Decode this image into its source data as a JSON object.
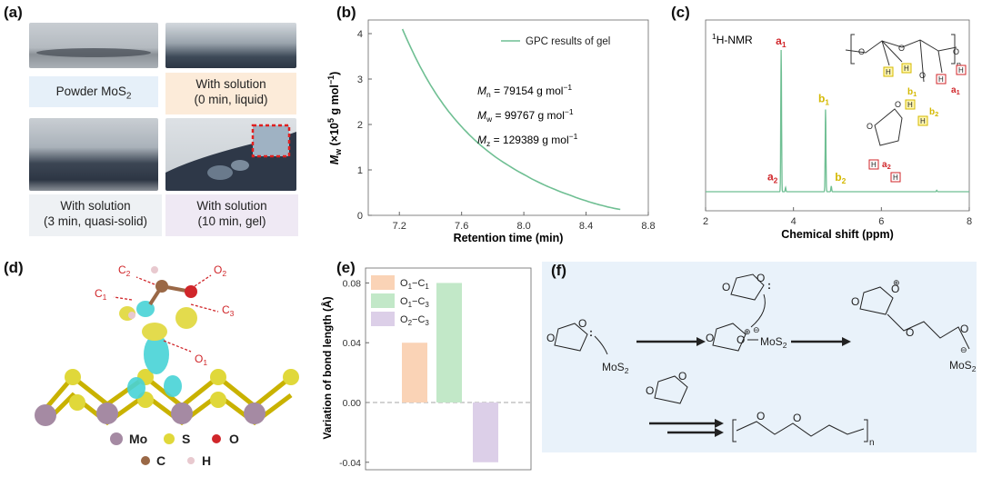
{
  "panel_labels": {
    "a": "(a)",
    "b": "(b)",
    "c": "(c)",
    "d": "(d)",
    "e": "(e)",
    "f": "(f)"
  },
  "panel_a": {
    "captions": [
      {
        "line1": "Powder MoS",
        "sub": "2",
        "line2": ""
      },
      {
        "line1": "With solution",
        "line2": "(0 min, liquid)"
      },
      {
        "line1": "With solution",
        "line2": "(3 min, quasi-solid)"
      },
      {
        "line1": "With solution",
        "line2": "(10 min, gel)"
      }
    ]
  },
  "panel_b": {
    "ylabel_main": "M",
    "ylabel_sub": "w",
    "ylabel_rest": " (×10",
    "ylabel_exp": "5",
    "ylabel_unit": " g mol",
    "ylabel_unit_exp": "−1",
    "ylabel_close": ")",
    "xlabel": "Retention time (min)",
    "legend": "GPC results of gel",
    "stats": [
      {
        "sym": "M",
        "sub": "n",
        "text": " = 79154 g mol",
        "exp": "−1"
      },
      {
        "sym": "M",
        "sub": "w",
        "text": " = 99767 g mol",
        "exp": "−1"
      },
      {
        "sym": "M",
        "sub": "z",
        "text": " = 129389 g mol",
        "exp": "−1"
      }
    ],
    "xticks": [
      "7.2",
      "7.6",
      "8.0",
      "8.4",
      "8.8"
    ],
    "yticks": [
      "0",
      "1",
      "2",
      "3",
      "4"
    ]
  },
  "panel_c": {
    "title_sup": "1",
    "title": "H-NMR",
    "xlabel": "Chemical shift (ppm)",
    "xticks": [
      "2",
      "4",
      "6",
      "8"
    ],
    "peak_labels": {
      "a1": "a",
      "a1_sub": "1",
      "a2": "a",
      "a2_sub": "2",
      "b1": "b",
      "b1_sub": "1",
      "b2": "b",
      "b2_sub": "2"
    },
    "struct_labels": {
      "H": "H",
      "n": "n",
      "b1": "b",
      "b1_sub": "1",
      "a1": "a",
      "a1_sub": "1",
      "b2": "b",
      "b2_sub": "2",
      "a2": "a",
      "a2_sub": "2"
    }
  },
  "panel_d": {
    "arrow_labels": [
      {
        "t": "C",
        "s": "2"
      },
      {
        "t": "O",
        "s": "2"
      },
      {
        "t": "C",
        "s": "1"
      },
      {
        "t": "C",
        "s": "3"
      },
      {
        "t": "O",
        "s": "1"
      }
    ],
    "legend": [
      {
        "label": "Mo",
        "color": "#a58aa3"
      },
      {
        "label": "S",
        "color": "#e0d83a"
      },
      {
        "label": "O",
        "color": "#d0262a"
      },
      {
        "label": "C",
        "color": "#9a6846"
      },
      {
        "label": "H",
        "color": "#e8c9cf"
      }
    ]
  },
  "panel_e": {
    "ylabel": "Variation of bond length (Å)",
    "yticks": [
      "-0.04",
      "0.00",
      "0.04",
      "0.08"
    ],
    "legend": [
      {
        "t": "O",
        "s1": "1",
        "mid": "−C",
        "s2": "1",
        "color": "#fad3b6"
      },
      {
        "t": "O",
        "s1": "1",
        "mid": "−C",
        "s2": "3",
        "color": "#c2e8c8"
      },
      {
        "t": "O",
        "s1": "2",
        "mid": "−C",
        "s2": "3",
        "color": "#dccfe8"
      }
    ]
  },
  "panel_f": {
    "labels": {
      "mos2": "MoS",
      "mos2_sub": "2",
      "n": "n",
      "plus": "⊕",
      "minus": "⊖",
      "colon": ":"
    }
  },
  "chart_data": [
    {
      "type": "line",
      "title": "",
      "xlabel": "Retention time (min)",
      "ylabel": "Mw (×10^5 g mol−1)",
      "xlim": [
        7.0,
        8.8
      ],
      "ylim": [
        0,
        4.3
      ],
      "series": [
        {
          "name": "GPC results of gel",
          "x": [
            7.22,
            7.3,
            7.4,
            7.5,
            7.6,
            7.7,
            7.8,
            7.9,
            8.0,
            8.1,
            8.2,
            8.3,
            8.4,
            8.5,
            8.62
          ],
          "y": [
            4.1,
            3.5,
            2.87,
            2.36,
            1.95,
            1.61,
            1.33,
            1.1,
            0.9,
            0.72,
            0.57,
            0.44,
            0.32,
            0.22,
            0.13
          ]
        }
      ],
      "color": "#6fbf93"
    },
    {
      "type": "line",
      "title": "1H-NMR",
      "xlabel": "Chemical shift (ppm)",
      "xlim": [
        2,
        8
      ],
      "series": [
        {
          "name": "",
          "peaks": [
            {
              "ppm": 3.72,
              "height": 1.0
            },
            {
              "ppm": 3.82,
              "height": 0.03
            },
            {
              "ppm": 4.73,
              "height": 0.58
            },
            {
              "ppm": 4.86,
              "height": 0.04
            },
            {
              "ppm": 7.26,
              "height": 0.01
            }
          ]
        }
      ],
      "color": "#6fbf93"
    },
    {
      "type": "bar",
      "ylabel": "Variation of bond length (Å)",
      "categories": [
        "O1−C1",
        "O1−C3",
        "O2−C3"
      ],
      "values": [
        0.04,
        0.08,
        -0.04
      ],
      "ylim": [
        -0.045,
        0.09
      ],
      "colors": [
        "#fad3b6",
        "#c2e8c8",
        "#dccfe8"
      ]
    }
  ]
}
